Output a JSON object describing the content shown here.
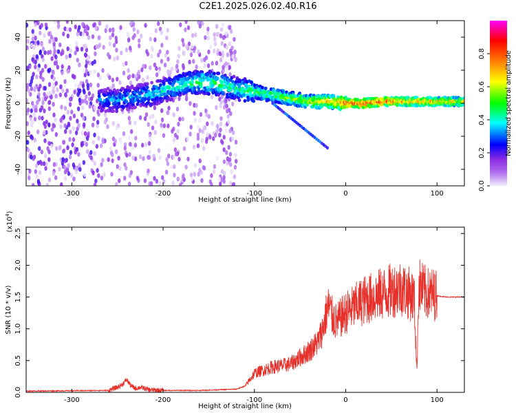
{
  "title": "C2E1.2025.026.02.40.R16",
  "chart_data": [
    {
      "type": "heatmap",
      "xlabel": "Height of straight line (km)",
      "ylabel": "Frequency (Hz)",
      "xlim": [
        -350,
        130
      ],
      "ylim": [
        -50,
        50
      ],
      "xticks": [
        -300,
        -200,
        -100,
        0,
        100
      ],
      "yticks": [
        -40,
        -20,
        0,
        20,
        40
      ],
      "colorbar": {
        "label": "Normalized spectral amplitude",
        "range": [
          0.0,
          1.0
        ],
        "ticks": [
          0.0,
          0.2,
          0.4,
          0.6,
          0.8
        ],
        "colormap": [
          "#f0ecfa",
          "#8a2be2",
          "#0000ff",
          "#00ffff",
          "#00ff00",
          "#ffff00",
          "#ff8000",
          "#ff0000",
          "#ff00ff"
        ]
      },
      "ridge": [
        {
          "x": -270,
          "y": 2,
          "a": 0.35
        },
        {
          "x": -250,
          "y": 2,
          "a": 0.4
        },
        {
          "x": -230,
          "y": 4,
          "a": 0.4
        },
        {
          "x": -210,
          "y": 6,
          "a": 0.45
        },
        {
          "x": -180,
          "y": 11,
          "a": 0.5
        },
        {
          "x": -160,
          "y": 13,
          "a": 0.55
        },
        {
          "x": -140,
          "y": 12,
          "a": 0.55
        },
        {
          "x": -120,
          "y": 9,
          "a": 0.5
        },
        {
          "x": -100,
          "y": 7,
          "a": 0.55
        },
        {
          "x": -80,
          "y": 5,
          "a": 0.6
        },
        {
          "x": -60,
          "y": 3,
          "a": 0.65
        },
        {
          "x": -40,
          "y": 1,
          "a": 0.7
        },
        {
          "x": -20,
          "y": 1,
          "a": 0.8
        },
        {
          "x": 0,
          "y": 0,
          "a": 0.95
        },
        {
          "x": 20,
          "y": 0,
          "a": 0.95
        },
        {
          "x": 40,
          "y": 1,
          "a": 0.92
        },
        {
          "x": 60,
          "y": 1,
          "a": 0.85
        },
        {
          "x": 80,
          "y": 1,
          "a": 0.8
        },
        {
          "x": 100,
          "y": 1,
          "a": 0.78
        },
        {
          "x": 130,
          "y": 1,
          "a": 0.75
        }
      ]
    },
    {
      "type": "line",
      "xlabel": "Height of straight line (km)",
      "ylabel": "SNR (10 * v/v)",
      "y_multiplier": "(x10",
      "y_multiplier_exp": "4",
      "xlim": [
        -350,
        130
      ],
      "ylim": [
        0,
        2.6
      ],
      "xticks": [
        -300,
        -200,
        -100,
        0,
        100
      ],
      "yticks": [
        0.0,
        0.5,
        1.0,
        1.5,
        2.0,
        2.5
      ],
      "line_color": "#e8302a",
      "series": [
        {
          "x": [
            -350,
            -260,
            -250,
            -245,
            -240,
            -235,
            -230,
            -225,
            -215,
            -200,
            -160,
            -120,
            -110,
            -100,
            -90,
            -80,
            -70,
            -60,
            -50,
            -40,
            -30,
            -25,
            -22,
            -20,
            -18,
            -15,
            -10,
            0,
            10,
            20,
            30,
            40,
            50,
            60,
            65,
            70,
            75,
            78,
            80,
            82,
            85,
            90,
            95,
            100,
            110,
            120,
            130
          ],
          "y": [
            0.02,
            0.03,
            0.08,
            0.12,
            0.2,
            0.1,
            0.06,
            0.08,
            0.04,
            0.03,
            0.03,
            0.05,
            0.1,
            0.3,
            0.35,
            0.4,
            0.42,
            0.45,
            0.55,
            0.65,
            0.8,
            1.0,
            1.2,
            1.3,
            1.35,
            1.2,
            1.1,
            1.25,
            1.35,
            1.45,
            1.5,
            1.55,
            1.6,
            1.65,
            1.6,
            1.55,
            1.5,
            0.3,
            1.7,
            1.65,
            1.6,
            1.55,
            1.55,
            1.52,
            1.5,
            1.5,
            1.5
          ]
        }
      ]
    }
  ]
}
